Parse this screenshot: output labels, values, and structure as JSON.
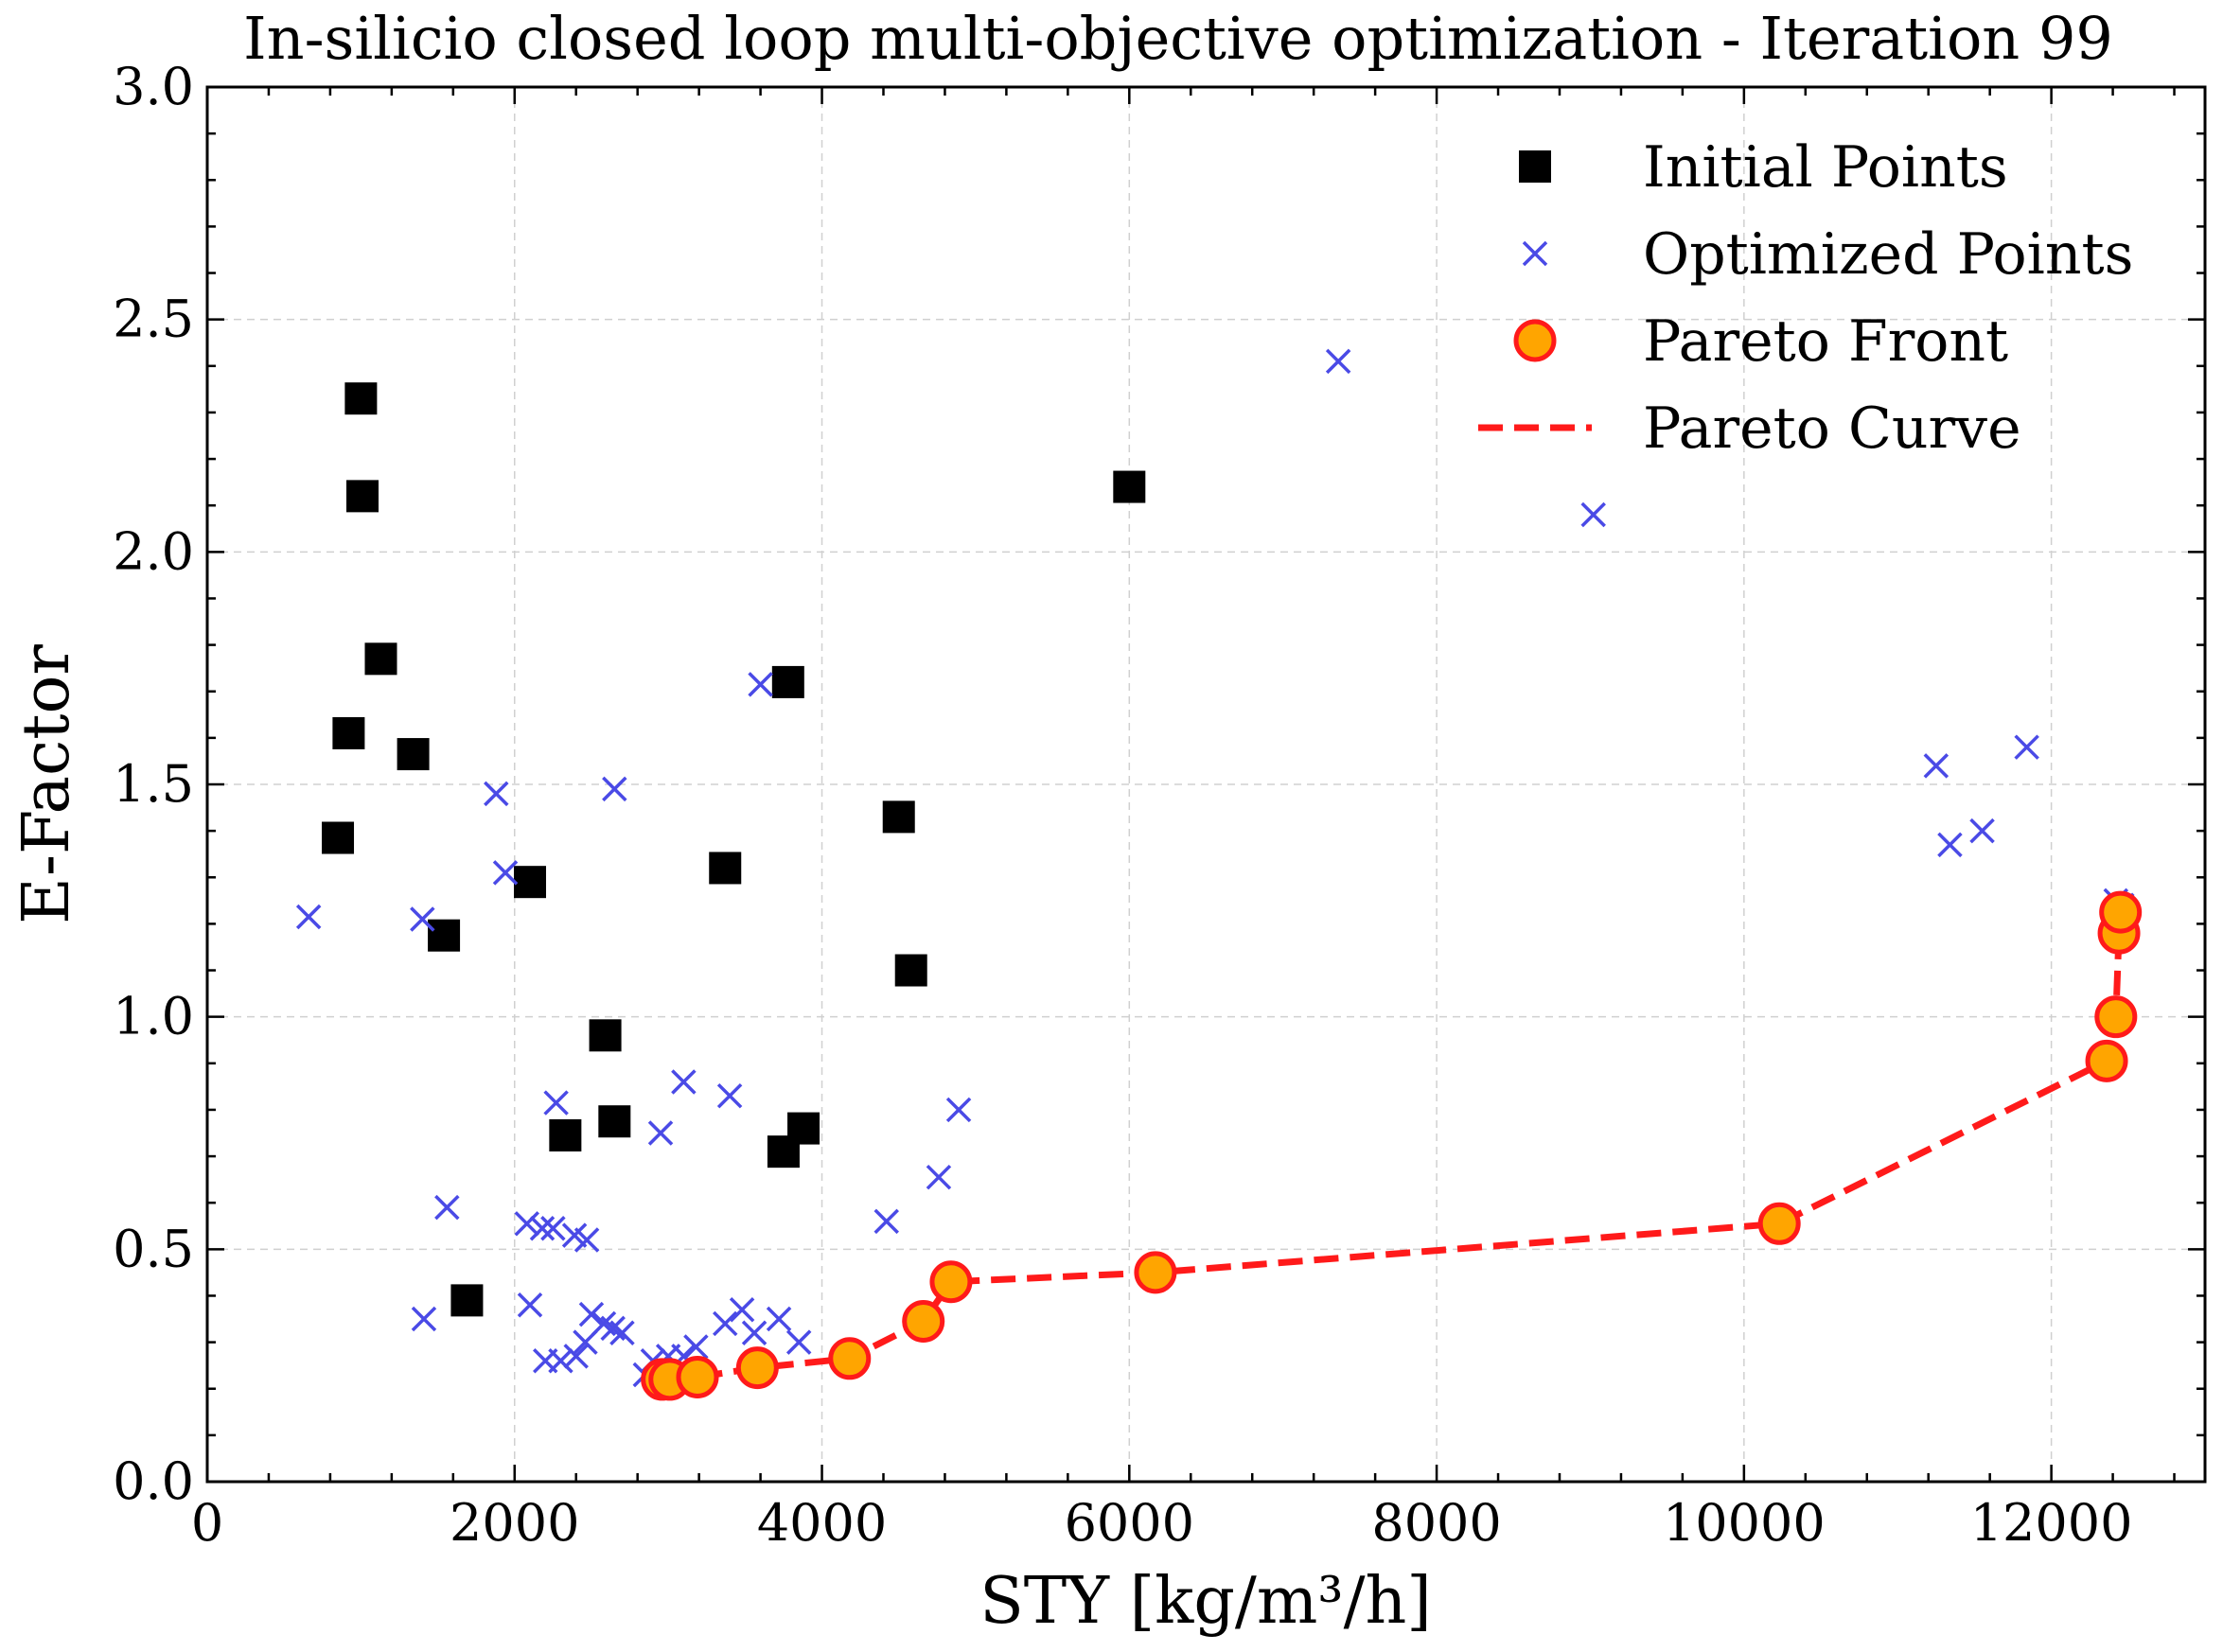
{
  "chart_data": {
    "type": "scatter",
    "title": "In-silicio closed loop multi-objective optimization - Iteration 99",
    "xlabel": "STY [kg/m³/h]",
    "ylabel": "E-Factor",
    "xlim": [
      0,
      13000
    ],
    "ylim": [
      0,
      3.0
    ],
    "xticks": [
      0,
      2000,
      4000,
      6000,
      8000,
      10000,
      12000
    ],
    "xtick_labels": [
      "0",
      "2000",
      "4000",
      "6000",
      "8000",
      "10000",
      "12000"
    ],
    "yticks": [
      0,
      0.5,
      1.0,
      1.5,
      2.0,
      2.5,
      3.0
    ],
    "ytick_labels": [
      "0.0",
      "0.5",
      "1.0",
      "1.5",
      "2.0",
      "2.5",
      "3.0"
    ],
    "grid": true,
    "legend_position": "top-right",
    "series": [
      {
        "name": "Initial Points",
        "marker": "square",
        "color": "#000000",
        "points": [
          [
            1000,
            2.33
          ],
          [
            1010,
            2.12
          ],
          [
            1130,
            1.77
          ],
          [
            920,
            1.61
          ],
          [
            1340,
            1.565
          ],
          [
            850,
            1.385
          ],
          [
            1540,
            1.175
          ],
          [
            2100,
            1.29
          ],
          [
            2590,
            0.96
          ],
          [
            2330,
            0.745
          ],
          [
            2650,
            0.775
          ],
          [
            1690,
            0.39
          ],
          [
            3370,
            1.32
          ],
          [
            3780,
            1.72
          ],
          [
            3750,
            0.71
          ],
          [
            3880,
            0.76
          ],
          [
            4500,
            1.43
          ],
          [
            4580,
            1.1
          ],
          [
            6000,
            2.14
          ]
        ]
      },
      {
        "name": "Optimized Points",
        "marker": "x",
        "color": "#4a4ae6",
        "points": [
          [
            660,
            1.215
          ],
          [
            1400,
            1.21
          ],
          [
            1880,
            1.48
          ],
          [
            1940,
            1.31
          ],
          [
            2650,
            1.49
          ],
          [
            3600,
            1.715
          ],
          [
            1560,
            0.59
          ],
          [
            2270,
            0.815
          ],
          [
            2080,
            0.555
          ],
          [
            2180,
            0.545
          ],
          [
            2250,
            0.545
          ],
          [
            2390,
            0.53
          ],
          [
            2470,
            0.52
          ],
          [
            2950,
            0.75
          ],
          [
            3100,
            0.86
          ],
          [
            3400,
            0.83
          ],
          [
            4420,
            0.56
          ],
          [
            4760,
            0.655
          ],
          [
            4890,
            0.8
          ],
          [
            1410,
            0.35
          ],
          [
            2100,
            0.38
          ],
          [
            2200,
            0.26
          ],
          [
            2300,
            0.26
          ],
          [
            2400,
            0.27
          ],
          [
            2460,
            0.3
          ],
          [
            2500,
            0.36
          ],
          [
            2580,
            0.34
          ],
          [
            2640,
            0.33
          ],
          [
            2700,
            0.32
          ],
          [
            2850,
            0.23
          ],
          [
            2900,
            0.26
          ],
          [
            3000,
            0.27
          ],
          [
            3100,
            0.27
          ],
          [
            3180,
            0.29
          ],
          [
            3370,
            0.34
          ],
          [
            3480,
            0.37
          ],
          [
            3560,
            0.32
          ],
          [
            3720,
            0.35
          ],
          [
            3850,
            0.3
          ],
          [
            7360,
            2.41
          ],
          [
            9020,
            2.08
          ],
          [
            11250,
            1.54
          ],
          [
            11340,
            1.37
          ],
          [
            11550,
            1.4
          ],
          [
            11840,
            1.58
          ],
          [
            12420,
            1.25
          ],
          [
            12460,
            1.24
          ]
        ]
      },
      {
        "name": "Pareto Front",
        "marker": "circle",
        "color": "#ffa500",
        "edgecolor": "#ff1a1a",
        "points": [
          [
            2960,
            0.22
          ],
          [
            3010,
            0.22
          ],
          [
            3190,
            0.225
          ],
          [
            3580,
            0.245
          ],
          [
            4180,
            0.265
          ],
          [
            4660,
            0.345
          ],
          [
            4840,
            0.43
          ],
          [
            6170,
            0.45
          ],
          [
            10230,
            0.555
          ],
          [
            12360,
            0.905
          ],
          [
            12420,
            1.0
          ],
          [
            12440,
            1.18
          ],
          [
            12450,
            1.225
          ]
        ]
      },
      {
        "name": "Pareto Curve",
        "marker": "dashed-line",
        "color": "#ff1a1a",
        "points": [
          [
            2960,
            0.22
          ],
          [
            3010,
            0.22
          ],
          [
            3190,
            0.225
          ],
          [
            3580,
            0.245
          ],
          [
            4180,
            0.265
          ],
          [
            4660,
            0.345
          ],
          [
            4840,
            0.43
          ],
          [
            6170,
            0.45
          ],
          [
            10230,
            0.555
          ],
          [
            12360,
            0.905
          ],
          [
            12420,
            1.0
          ],
          [
            12440,
            1.18
          ],
          [
            12450,
            1.225
          ]
        ]
      }
    ]
  }
}
